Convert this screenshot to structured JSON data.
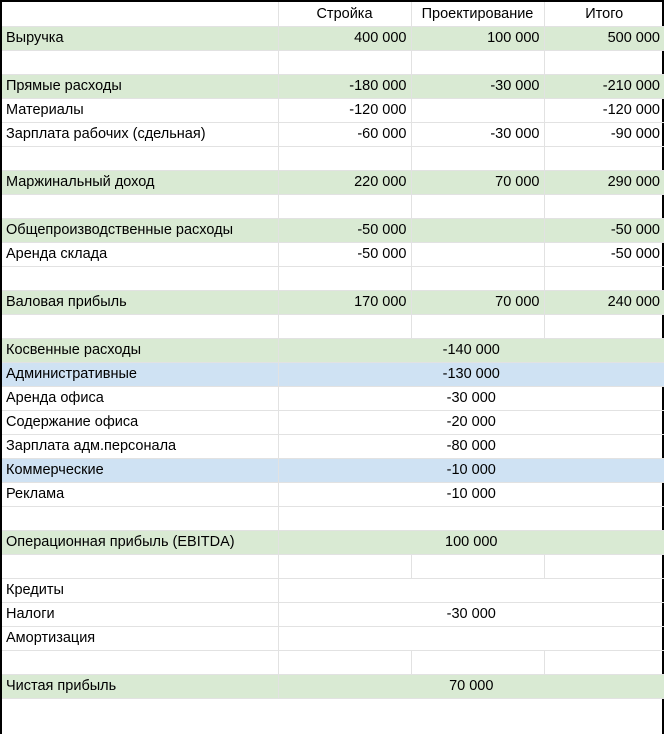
{
  "colors": {
    "green": "#d9ead3",
    "blue": "#cfe2f3",
    "grid": "#e2e2e2"
  },
  "header": [
    "",
    "Стройка",
    "Проектирование",
    "Итого"
  ],
  "rows": [
    {
      "label": "Выручка",
      "values": [
        "400 000",
        "100 000",
        "500 000"
      ],
      "style": "green"
    },
    {
      "label": "",
      "values": [
        "",
        "",
        ""
      ],
      "style": ""
    },
    {
      "label": "Прямые расходы",
      "values": [
        "-180 000",
        "-30 000",
        "-210 000"
      ],
      "style": "green"
    },
    {
      "label": "Материалы",
      "values": [
        "-120 000",
        "",
        "-120 000"
      ],
      "style": ""
    },
    {
      "label": "Зарплата рабочих (сдельная)",
      "values": [
        "-60 000",
        "-30 000",
        "-90 000"
      ],
      "style": ""
    },
    {
      "label": "",
      "values": [
        "",
        "",
        ""
      ],
      "style": ""
    },
    {
      "label": "Маржинальный доход",
      "values": [
        "220 000",
        "70 000",
        "290 000"
      ],
      "style": "green"
    },
    {
      "label": "",
      "values": [
        "",
        "",
        ""
      ],
      "style": ""
    },
    {
      "label": "Общепроизводственные расходы",
      "values": [
        "-50 000",
        "",
        "-50 000"
      ],
      "style": "green"
    },
    {
      "label": "Аренда склада",
      "values": [
        "-50 000",
        "",
        "-50 000"
      ],
      "style": ""
    },
    {
      "label": "",
      "values": [
        "",
        "",
        ""
      ],
      "style": ""
    },
    {
      "label": "Валовая прибыль",
      "values": [
        "170 000",
        "70 000",
        "240 000"
      ],
      "style": "green"
    },
    {
      "label": "",
      "values": [
        "",
        "",
        ""
      ],
      "style": ""
    },
    {
      "label": "Косвенные расходы",
      "merged": "-140 000",
      "style": "green"
    },
    {
      "label": "Административные",
      "merged": "-130 000",
      "style": "blue"
    },
    {
      "label": "Аренда офиса",
      "merged": "-30 000",
      "style": ""
    },
    {
      "label": "Содержание офиса",
      "merged": "-20 000",
      "style": ""
    },
    {
      "label": "Зарплата адм.персонала",
      "merged": "-80 000",
      "style": ""
    },
    {
      "label": "Коммерческие",
      "merged": "-10 000",
      "style": "blue"
    },
    {
      "label": "Реклама",
      "merged": "-10 000",
      "style": ""
    },
    {
      "label": "",
      "merged": "",
      "style": ""
    },
    {
      "label": "Операционная прибыль (EBITDA)",
      "merged": "100 000",
      "style": "green"
    },
    {
      "label": "",
      "values": [
        "",
        "",
        ""
      ],
      "style": ""
    },
    {
      "label": "Кредиты",
      "merged": "",
      "style": ""
    },
    {
      "label": "Налоги",
      "merged": "-30 000",
      "style": ""
    },
    {
      "label": "Амортизация",
      "merged": "",
      "style": ""
    },
    {
      "label": "",
      "values": [
        "",
        "",
        ""
      ],
      "style": ""
    },
    {
      "label": "Чистая прибыль",
      "merged": "70 000",
      "style": "green"
    }
  ]
}
